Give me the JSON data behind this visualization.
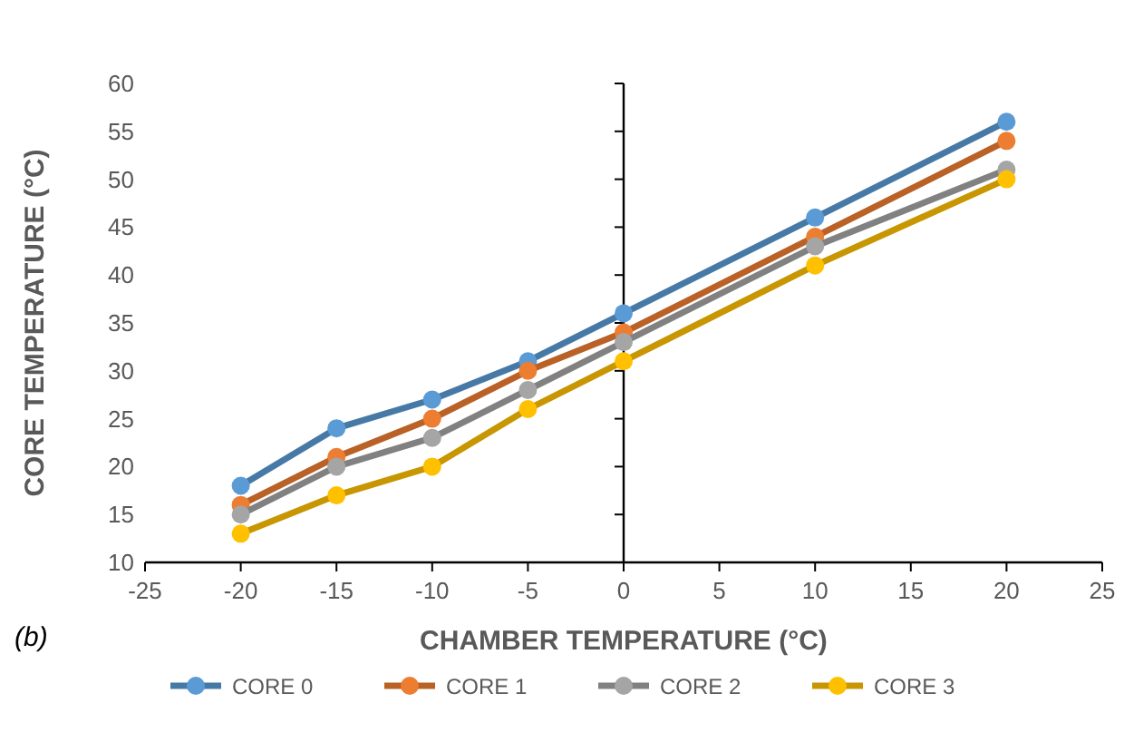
{
  "chart_data": {
    "type": "line",
    "xlabel": "CHAMBER TEMPERATURE (°C)",
    "ylabel": "CORE TEMPERATURE (°C)",
    "x": [
      -20,
      -15,
      -10,
      -5,
      0,
      10,
      20
    ],
    "series": [
      {
        "name": "CORE 0",
        "color": "#5b9bd5",
        "values": [
          18,
          24,
          27,
          31,
          36,
          46,
          56
        ]
      },
      {
        "name": "CORE 1",
        "color": "#ed7d31",
        "values": [
          16,
          21,
          25,
          30,
          34,
          44,
          54
        ]
      },
      {
        "name": "CORE 2",
        "color": "#a5a5a5",
        "values": [
          15,
          20,
          23,
          28,
          33,
          43,
          51
        ]
      },
      {
        "name": "CORE 3",
        "color": "#ffc000",
        "values": [
          13,
          17,
          20,
          26,
          31,
          41,
          50
        ]
      }
    ],
    "xlim": [
      -25,
      25
    ],
    "xticks": [
      -25,
      -20,
      -15,
      -10,
      -5,
      0,
      5,
      10,
      15,
      20,
      25
    ],
    "ylim": [
      10,
      60
    ],
    "yticks": [
      10,
      15,
      20,
      25,
      30,
      35,
      40,
      45,
      50,
      55,
      60
    ],
    "legend": "bottom",
    "marker": "circle",
    "line_style": "solid",
    "annotations": [
      "(b)"
    ]
  }
}
